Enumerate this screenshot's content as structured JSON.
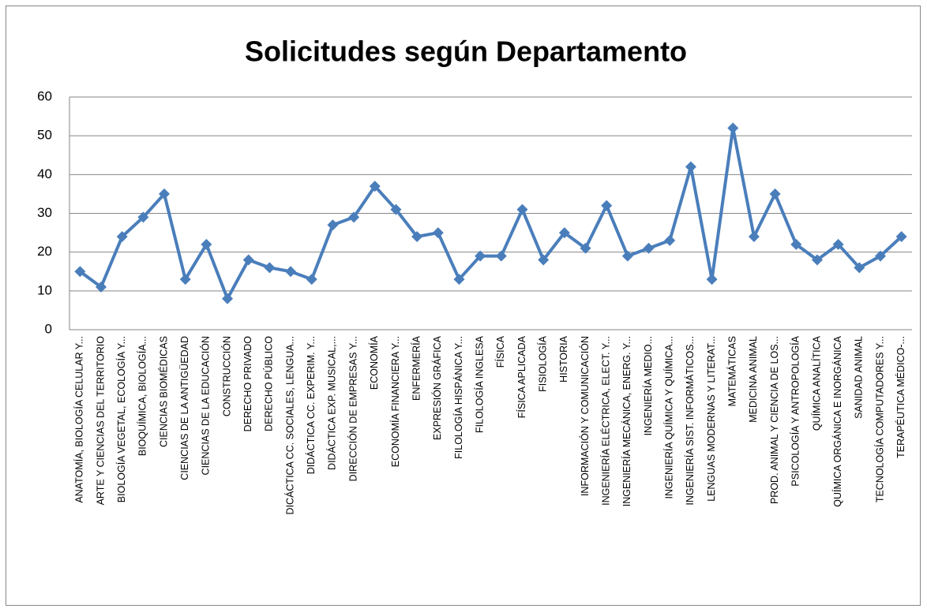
{
  "chart_data": {
    "type": "line",
    "title": "Solicitudes según Departamento",
    "categories": [
      "ANATOMÍA, BIOLOGÍA CELULAR Y...",
      "ARTE Y CIENCIAS DEL TERRITORIO",
      "BIOLOGÍA VEGETAL, ECOLOGÍA Y...",
      "BIOQUÍMICA, BIOLOGÍA...",
      "CIENCIAS BIOMÉDICAS",
      "CIENCIAS DE LA ANTIGÜEDAD",
      "CIENCIAS DE LA EDUCACIÓN",
      "CONSTRUCCIÓN",
      "DERECHO PRIVADO",
      "DERECHO PÚBLICO",
      "DICÁCTICA CC. SOCIALES, LENGUA...",
      "DIDÁCTICA CC. EXPERIM. Y...",
      "DIDÁCTICA EXP. MUSICAL,...",
      "DIRECCIÓN DE EMPRESAS Y...",
      "ECONOMÍA",
      "ECONOMÍA FINANCIERA Y...",
      "ENFERMERÍA",
      "EXPRESIÓN GRÁFICA",
      "FILOLOGÍA HISPÁNICA Y...",
      "FILOLOGÍA INGLESA",
      "FÍSICA",
      "FÍSICA APLICADA",
      "FISIOLOGÍA",
      "HISTORIA",
      "INFORMACIÓN Y COMUNICACIÓN",
      "INGENIERÍA ELÉCTRICA, ELECT. Y...",
      "INGENIERÍA MECÁNICA, ENERG. Y...",
      "INGENIERÍA MEDIO...",
      "INGENIERÍA QUÍMICA Y QUÍMICA...",
      "INGENIERÍA SIST. INFORMÁTICOS...",
      "LENGUAS MODERNAS Y LITERAT...",
      "MATEMÁTICAS",
      "MEDICINA ANIMAL",
      "PROD. ANIMAL Y CIENCIA DE LOS...",
      "PSICOLOGÍA Y ANTROPOLOGÍA",
      "QUÍMICA ANALÍTICA",
      "QUÍMICA ORGÁNICA E INORGÁNICA",
      "SANIDAD ANIMAL",
      "TECNOLOGÍA COMPUTADORES Y...",
      "TERAPÉUTICA MÉDICO-..."
    ],
    "values": [
      15,
      11,
      24,
      29,
      35,
      13,
      22,
      8,
      18,
      16,
      15,
      13,
      27,
      29,
      37,
      31,
      24,
      25,
      13,
      19,
      19,
      31,
      18,
      25,
      21,
      32,
      19,
      21,
      23,
      42,
      13,
      52,
      24,
      35,
      22,
      18,
      22,
      16,
      19,
      24
    ],
    "color": "#4a7ebb",
    "ylim": [
      0,
      60
    ],
    "yticks": [
      0,
      10,
      20,
      30,
      40,
      50,
      60
    ],
    "grid": true
  }
}
